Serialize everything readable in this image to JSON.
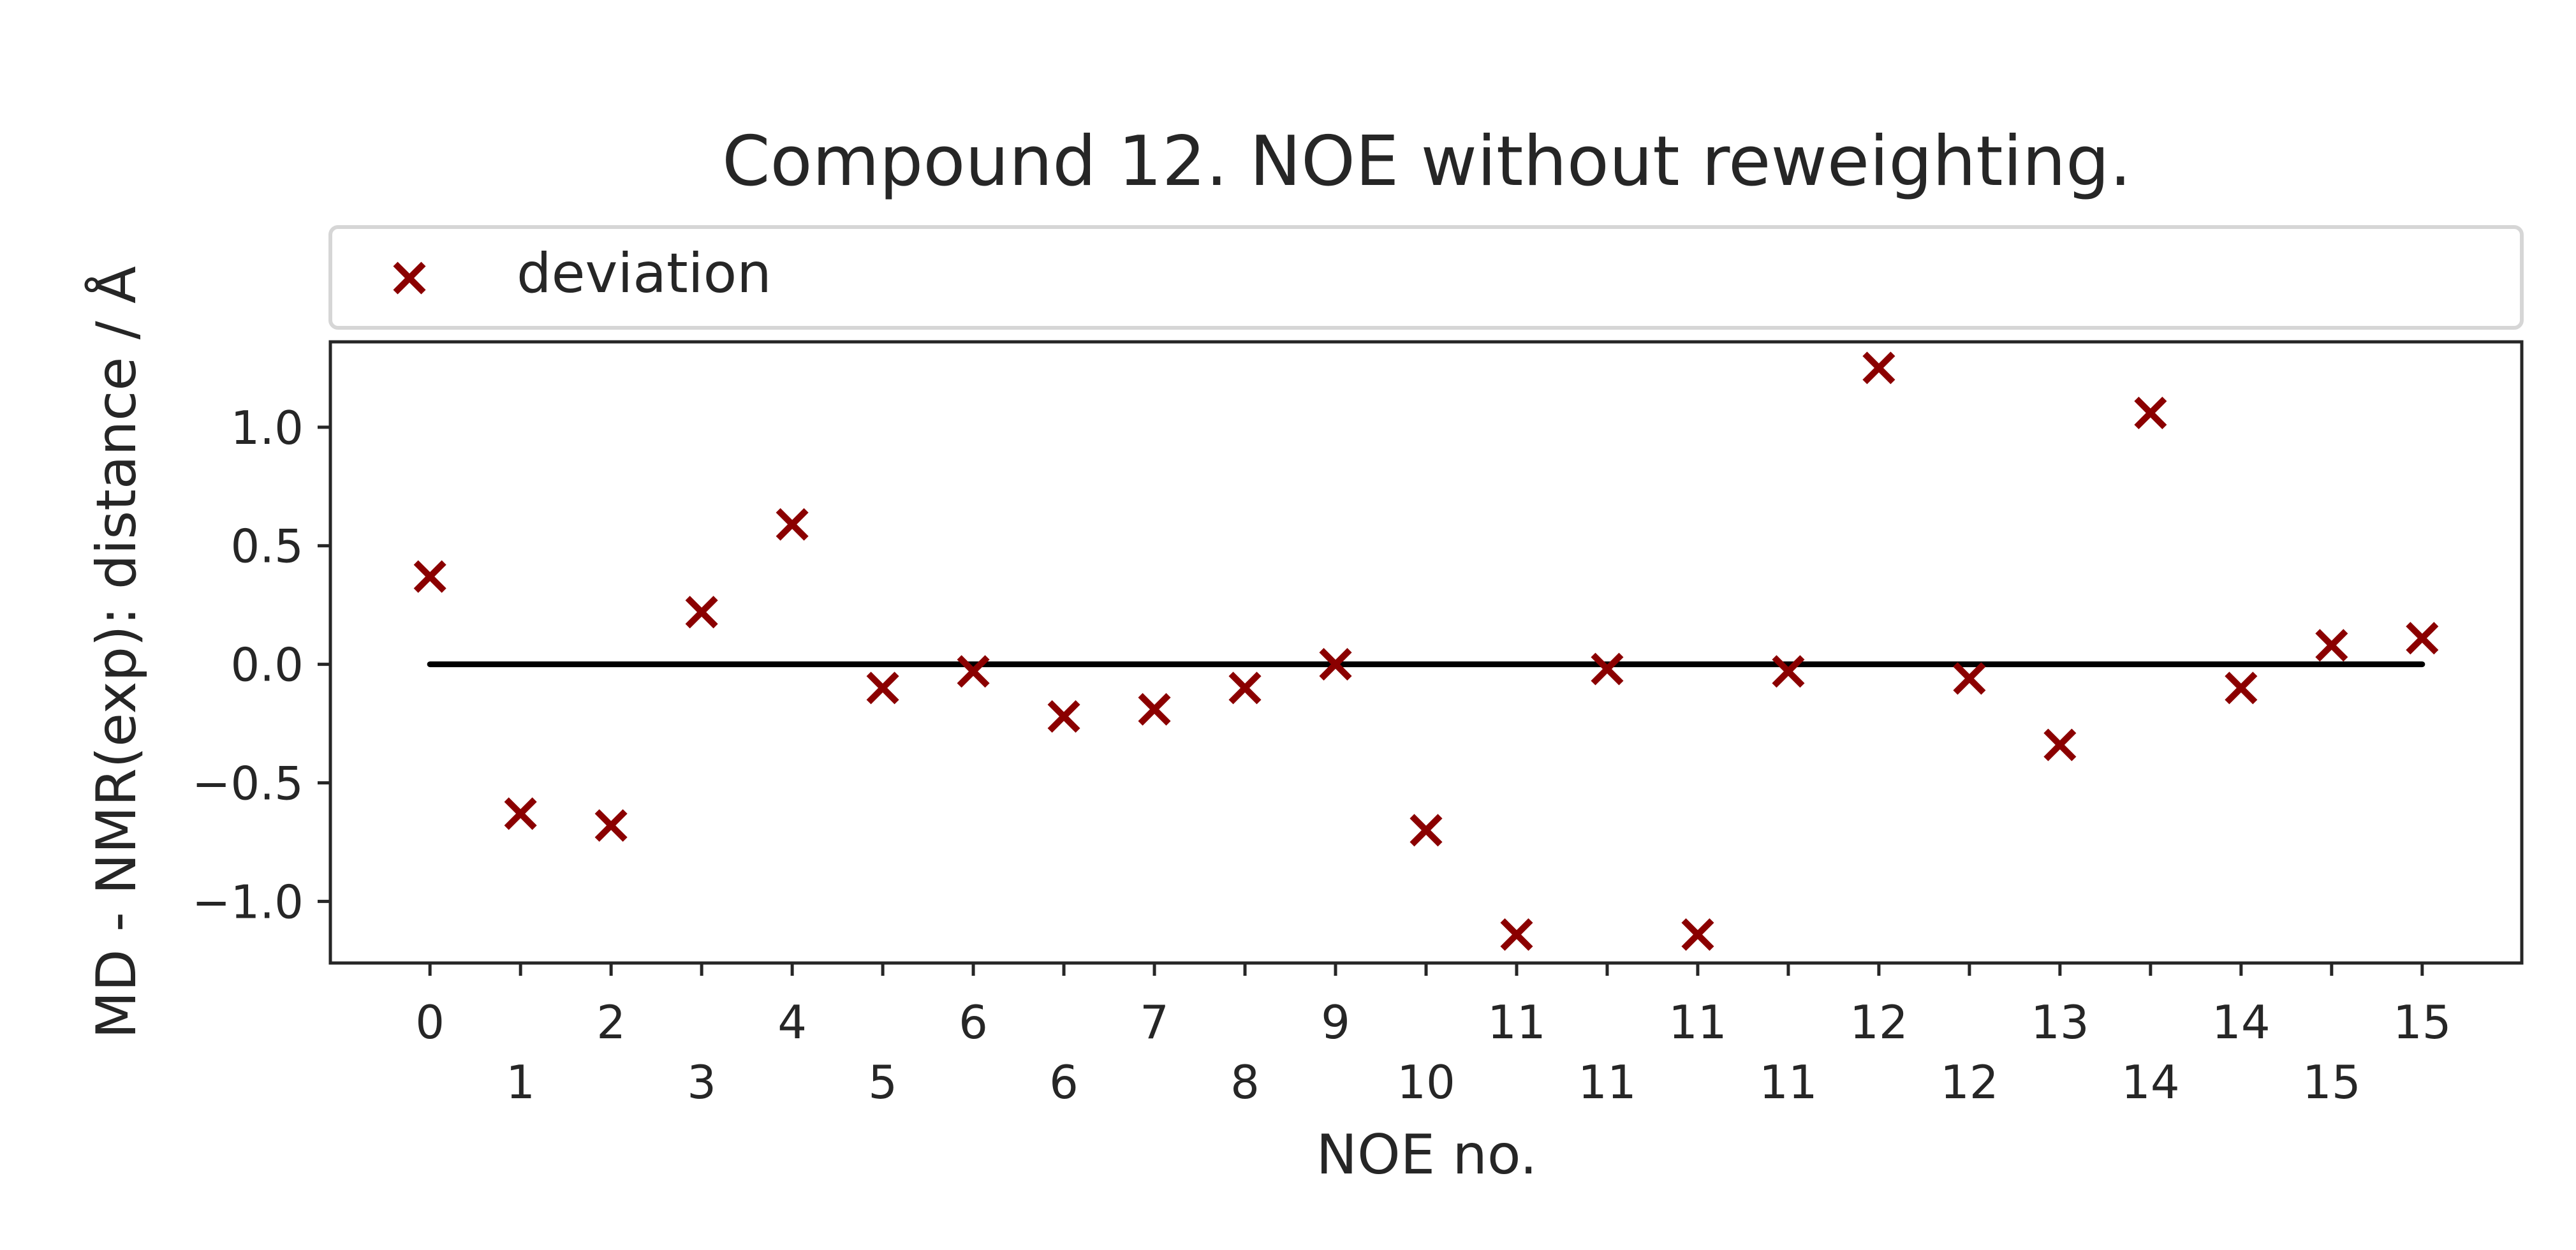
{
  "chart_data": {
    "type": "scatter",
    "title": "Compound 12. NOE without reweighting.",
    "xlabel": "NOE no.",
    "ylabel": "MD - NMR(exp): distance / Å",
    "legend": {
      "placement": "top, above plot",
      "entries": [
        "deviation"
      ]
    },
    "x_tick_labels": [
      "0",
      "1",
      "2",
      "3",
      "4",
      "5",
      "6",
      "6",
      "7",
      "8",
      "9",
      "10",
      "11",
      "11",
      "11",
      "11",
      "12",
      "12",
      "13",
      "14",
      "14",
      "15",
      "15"
    ],
    "y_ticks": [
      1.0,
      0.5,
      0.0,
      -0.5,
      -1.0
    ],
    "y_tick_labels": [
      "1.0",
      "0.5",
      "0.0",
      "−0.5",
      "−1.0"
    ],
    "xlim": [
      -1.1,
      23.1
    ],
    "ylim": [
      -1.26,
      1.36
    ],
    "reference_line": {
      "y": 0.0,
      "x_from": 0,
      "x_to": 22,
      "color": "#000000"
    },
    "series": [
      {
        "name": "deviation",
        "marker": "x",
        "color": "#8b0000",
        "x": [
          0,
          1,
          2,
          3,
          4,
          5,
          6,
          7,
          8,
          9,
          10,
          11,
          12,
          13,
          14,
          15,
          16,
          17,
          18,
          19,
          20,
          21,
          22
        ],
        "y": [
          0.37,
          -0.63,
          -0.68,
          0.22,
          0.59,
          -0.1,
          -0.03,
          -0.22,
          -0.19,
          -0.1,
          0.0,
          -0.7,
          -1.14,
          -0.02,
          -1.14,
          -0.03,
          1.25,
          -0.06,
          -0.34,
          1.06,
          -0.1,
          0.08,
          0.11
        ]
      }
    ]
  }
}
